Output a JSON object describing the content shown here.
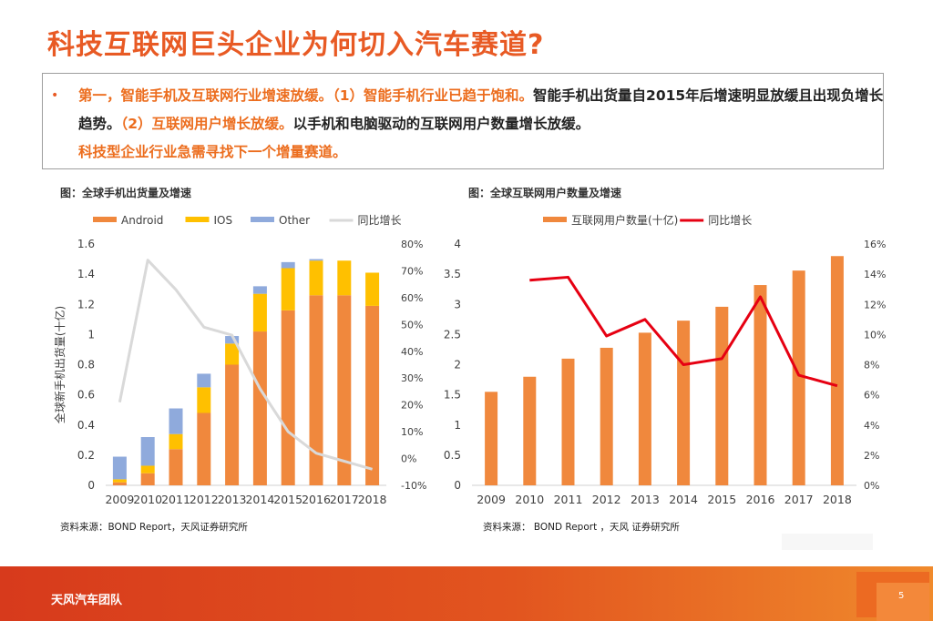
{
  "title": "科技互联网巨头企业为何切入汽车赛道?",
  "bullet": {
    "marker": "•",
    "seg1": "第一，智能手机及互联网行业增速放缓。（1）智能手机行业已趋于饱和。",
    "seg2": "智能手机出货量自2015年后增速明显放缓且出现负增长趋势。",
    "seg3": "（2）互联网用户增长放缓。",
    "seg4": "以手机和电脑驱动的互联网用户数量增长放缓。",
    "seg5": "科技型企业行业急需寻找下一个增量赛道。"
  },
  "left_caption": "图：全球手机出货量及增速",
  "right_caption": "图：全球互联网用户数量及增速",
  "left_source": "资料来源：BOND Report，天风证券研究所",
  "right_source": "资料来源： BOND Report ，天风 证券研究所",
  "footer": {
    "team": "天风汽车团队",
    "page": "5"
  },
  "colors": {
    "accent": "#e85a24",
    "android": "#f0883d",
    "ios": "#ffc000",
    "other": "#8faadc",
    "yoy_left": "#d9d9d9",
    "internet": "#f0883d",
    "yoy_right": "#e60012"
  },
  "chart_data": [
    {
      "type": "bar",
      "stacked": true,
      "title": "全球手机出货量及增速",
      "categories": [
        "2009",
        "2010",
        "2011",
        "2012",
        "2013",
        "2014",
        "2015",
        "2016",
        "2017",
        "2018"
      ],
      "series": [
        {
          "name": "Android",
          "values": [
            0.02,
            0.08,
            0.24,
            0.48,
            0.8,
            1.02,
            1.16,
            1.26,
            1.26,
            1.19
          ]
        },
        {
          "name": "IOS",
          "values": [
            0.02,
            0.05,
            0.1,
            0.17,
            0.14,
            0.25,
            0.28,
            0.23,
            0.23,
            0.22
          ]
        },
        {
          "name": "Other",
          "values": [
            0.15,
            0.19,
            0.17,
            0.09,
            0.05,
            0.05,
            0.04,
            0.01,
            0.0,
            0.0
          ]
        }
      ],
      "line": {
        "name": "同比增长",
        "values": [
          0.21,
          0.74,
          0.63,
          0.49,
          0.46,
          0.26,
          0.1,
          0.02,
          -0.01,
          -0.04
        ]
      },
      "ylabel": "全球新手机出货量(十亿)",
      "ylim": [
        0,
        1.6
      ],
      "yticks": [
        "0",
        "0.2",
        "0.4",
        "0.6",
        "0.8",
        "1",
        "1.2",
        "1.4",
        "1.6"
      ],
      "y2lim": [
        -0.1,
        0.8
      ],
      "y2ticks": [
        "-10%",
        "0%",
        "10%",
        "20%",
        "30%",
        "40%",
        "50%",
        "60%",
        "70%",
        "80%"
      ],
      "legend": "top"
    },
    {
      "type": "bar",
      "title": "全球互联网用户数量及增速",
      "categories": [
        "2009",
        "2010",
        "2011",
        "2012",
        "2013",
        "2014",
        "2015",
        "2016",
        "2017",
        "2018"
      ],
      "series": [
        {
          "name": "互联网用户数量(十亿)",
          "values": [
            1.55,
            1.8,
            2.1,
            2.28,
            2.53,
            2.73,
            2.96,
            3.32,
            3.56,
            3.8
          ]
        }
      ],
      "line": {
        "name": "同比增长",
        "values": [
          null,
          0.136,
          0.138,
          0.099,
          0.11,
          0.08,
          0.084,
          0.125,
          0.073,
          0.066
        ]
      },
      "ylim": [
        0,
        4
      ],
      "yticks": [
        "0",
        "0.5",
        "1",
        "1.5",
        "2",
        "2.5",
        "3",
        "3.5",
        "4"
      ],
      "y2lim": [
        0,
        0.16
      ],
      "y2ticks": [
        "0%",
        "2%",
        "4%",
        "6%",
        "8%",
        "10%",
        "12%",
        "14%",
        "16%"
      ],
      "legend": "top"
    }
  ]
}
